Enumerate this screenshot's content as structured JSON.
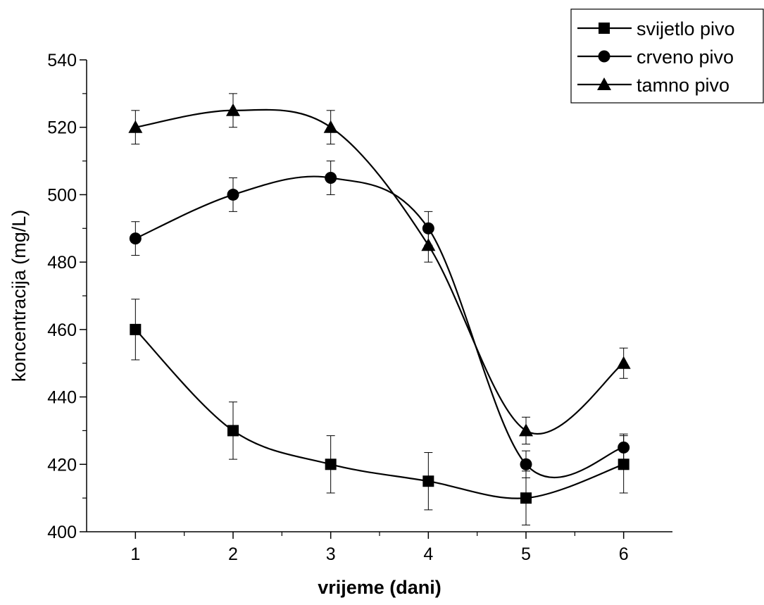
{
  "chart_data": {
    "type": "line",
    "xlabel": "vrijeme (dani)",
    "ylabel": "koncentracija (mg/L)",
    "x": [
      1,
      2,
      3,
      4,
      5,
      6
    ],
    "xlim": [
      0.5,
      6.5
    ],
    "ylim": [
      400,
      540
    ],
    "xticks": [
      1,
      2,
      3,
      4,
      5,
      6
    ],
    "yticks": [
      400,
      420,
      440,
      460,
      480,
      500,
      520,
      540
    ],
    "grid": false,
    "legend": "top-right",
    "series": [
      {
        "name": "svijetlo pivo",
        "marker": "square",
        "values": [
          460,
          430,
          420,
          415,
          410,
          420
        ],
        "errors": [
          9,
          8.5,
          8.5,
          8.5,
          8,
          8.5
        ]
      },
      {
        "name": "crveno pivo",
        "marker": "circle",
        "values": [
          487,
          500,
          505,
          490,
          420,
          425
        ],
        "errors": [
          5,
          5,
          5,
          5,
          4,
          4
        ]
      },
      {
        "name": "tamno pivo",
        "marker": "triangle",
        "values": [
          520,
          525,
          520,
          485,
          430,
          450
        ],
        "errors": [
          5,
          5,
          5,
          5,
          4,
          4.5
        ]
      }
    ],
    "colors": {
      "line": "#000000",
      "marker": "#000000"
    }
  }
}
